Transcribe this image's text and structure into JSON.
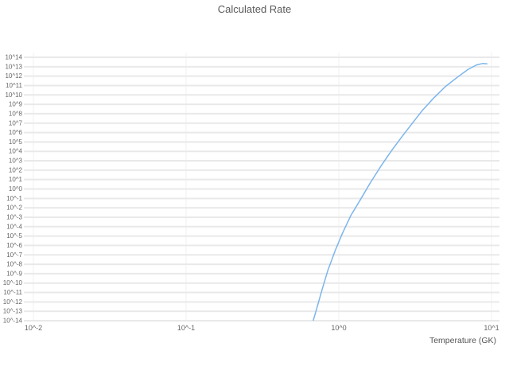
{
  "chart_data": {
    "type": "line",
    "title": "Calculated Rate",
    "xlabel": "Temperature (GK)",
    "ylabel": "",
    "xscale": "log",
    "yscale": "log",
    "xlim": [
      0.01,
      10
    ],
    "ylim": [
      1e-14,
      100000000000000.0
    ],
    "grid": true,
    "legend": false,
    "line_color": "#7cb5ec",
    "grid_color": "#e9e9e9",
    "x_ticks": [
      {
        "value": 0.01,
        "label": "10^-2"
      },
      {
        "value": 0.1,
        "label": "10^-1"
      },
      {
        "value": 1,
        "label": "10^0"
      },
      {
        "value": 10,
        "label": "10^1"
      }
    ],
    "y_ticks": [
      {
        "exp": 14,
        "label": "10^14"
      },
      {
        "exp": 13,
        "label": "10^13"
      },
      {
        "exp": 12,
        "label": "10^12"
      },
      {
        "exp": 11,
        "label": "10^11"
      },
      {
        "exp": 10,
        "label": "10^10"
      },
      {
        "exp": 9,
        "label": "10^9"
      },
      {
        "exp": 8,
        "label": "10^8"
      },
      {
        "exp": 7,
        "label": "10^7"
      },
      {
        "exp": 6,
        "label": "10^6"
      },
      {
        "exp": 5,
        "label": "10^5"
      },
      {
        "exp": 4,
        "label": "10^4"
      },
      {
        "exp": 3,
        "label": "10^3"
      },
      {
        "exp": 2,
        "label": "10^2"
      },
      {
        "exp": 1,
        "label": "10^1"
      },
      {
        "exp": 0,
        "label": "10^0"
      },
      {
        "exp": -1,
        "label": "10^-1"
      },
      {
        "exp": -2,
        "label": "10^-2"
      },
      {
        "exp": -3,
        "label": "10^-3"
      },
      {
        "exp": -4,
        "label": "10^-4"
      },
      {
        "exp": -5,
        "label": "10^-5"
      },
      {
        "exp": -6,
        "label": "10^-6"
      },
      {
        "exp": -7,
        "label": "10^-7"
      },
      {
        "exp": -8,
        "label": "10^-8"
      },
      {
        "exp": -9,
        "label": "10^-9"
      },
      {
        "exp": -10,
        "label": "10^-10"
      },
      {
        "exp": -11,
        "label": "10^-11"
      },
      {
        "exp": -12,
        "label": "10^-12"
      },
      {
        "exp": -13,
        "label": "10^-13"
      },
      {
        "exp": -14,
        "label": "10^-14"
      }
    ],
    "series": [
      {
        "name": "calculated-rate",
        "temperature_gk": [
          0.68,
          0.72,
          0.78,
          0.85,
          0.95,
          1.05,
          1.2,
          1.4,
          1.6,
          1.9,
          2.2,
          2.6,
          3.0,
          3.5,
          4.2,
          5.0,
          6.0,
          7.0,
          8.0,
          8.8,
          9.4
        ],
        "log10_rate": [
          -14,
          -12.6,
          -10.6,
          -8.6,
          -6.5,
          -4.8,
          -2.8,
          -1.0,
          0.6,
          2.5,
          4.0,
          5.6,
          6.9,
          8.3,
          9.7,
          10.9,
          11.9,
          12.7,
          13.2,
          13.35,
          13.3
        ]
      }
    ]
  }
}
